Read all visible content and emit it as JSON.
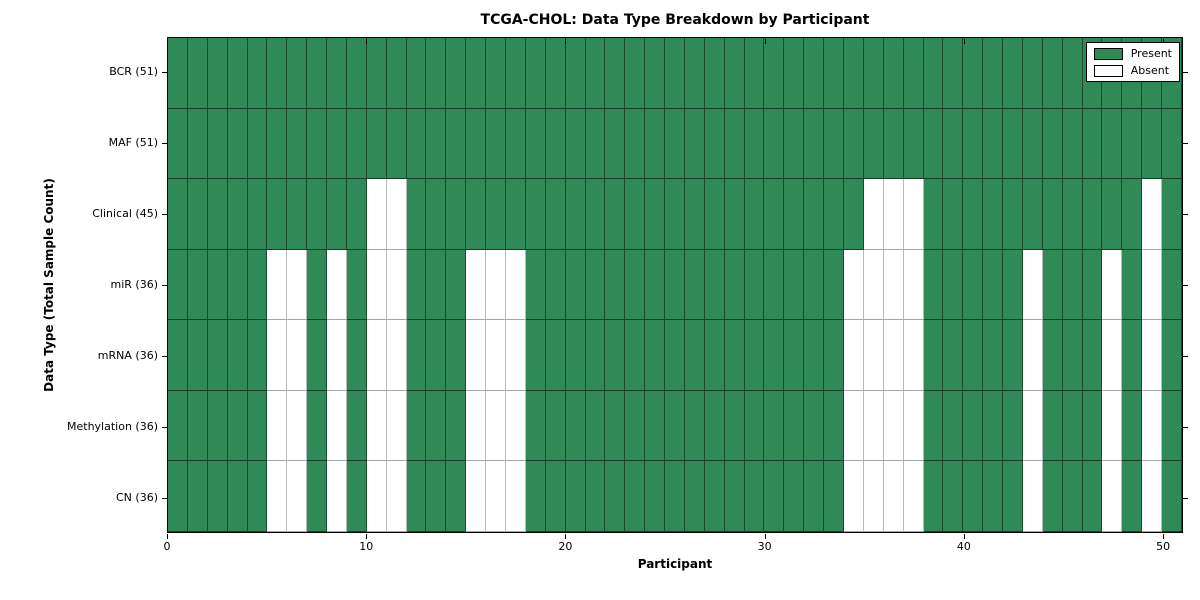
{
  "chart_data": {
    "type": "heatmap",
    "title": "TCGA-CHOL: Data Type Breakdown by Participant",
    "xlabel": "Participant",
    "ylabel": "Data Type (Total Sample Count)",
    "x_ticks": [
      0,
      10,
      20,
      30,
      40,
      50
    ],
    "x_range": [
      0,
      51
    ],
    "n_participants": 51,
    "grid": true,
    "legend": {
      "position": "upper right",
      "entries": [
        {
          "label": "Present",
          "color": "#2f8a57"
        },
        {
          "label": "Absent",
          "color": "#ffffff"
        }
      ]
    },
    "rows": [
      {
        "label": "BCR (51)",
        "name": "BCR",
        "present_count": 51,
        "absent_participants": []
      },
      {
        "label": "MAF (51)",
        "name": "MAF",
        "present_count": 51,
        "absent_participants": []
      },
      {
        "label": "Clinical (45)",
        "name": "Clinical",
        "present_count": 45,
        "absent_participants": [
          10,
          11,
          35,
          36,
          37,
          49
        ]
      },
      {
        "label": "miR (36)",
        "name": "miR",
        "present_count": 36,
        "absent_participants": [
          5,
          6,
          8,
          10,
          11,
          15,
          16,
          17,
          34,
          35,
          36,
          37,
          43,
          47,
          49
        ]
      },
      {
        "label": "mRNA (36)",
        "name": "mRNA",
        "present_count": 36,
        "absent_participants": [
          5,
          6,
          8,
          10,
          11,
          15,
          16,
          17,
          34,
          35,
          36,
          37,
          43,
          47,
          49
        ]
      },
      {
        "label": "Methylation (36)",
        "name": "Methylation",
        "present_count": 36,
        "absent_participants": [
          5,
          6,
          8,
          10,
          11,
          15,
          16,
          17,
          34,
          35,
          36,
          37,
          43,
          47,
          49
        ]
      },
      {
        "label": "CN (36)",
        "name": "CN",
        "present_count": 36,
        "absent_participants": [
          5,
          6,
          8,
          10,
          11,
          15,
          16,
          17,
          34,
          35,
          36,
          37,
          43,
          47,
          49
        ]
      }
    ],
    "colors": {
      "present": "#2f8a57",
      "absent": "#ffffff",
      "cell_edge": "rgba(0,0,0,0.45)",
      "frame": "#000000"
    }
  }
}
